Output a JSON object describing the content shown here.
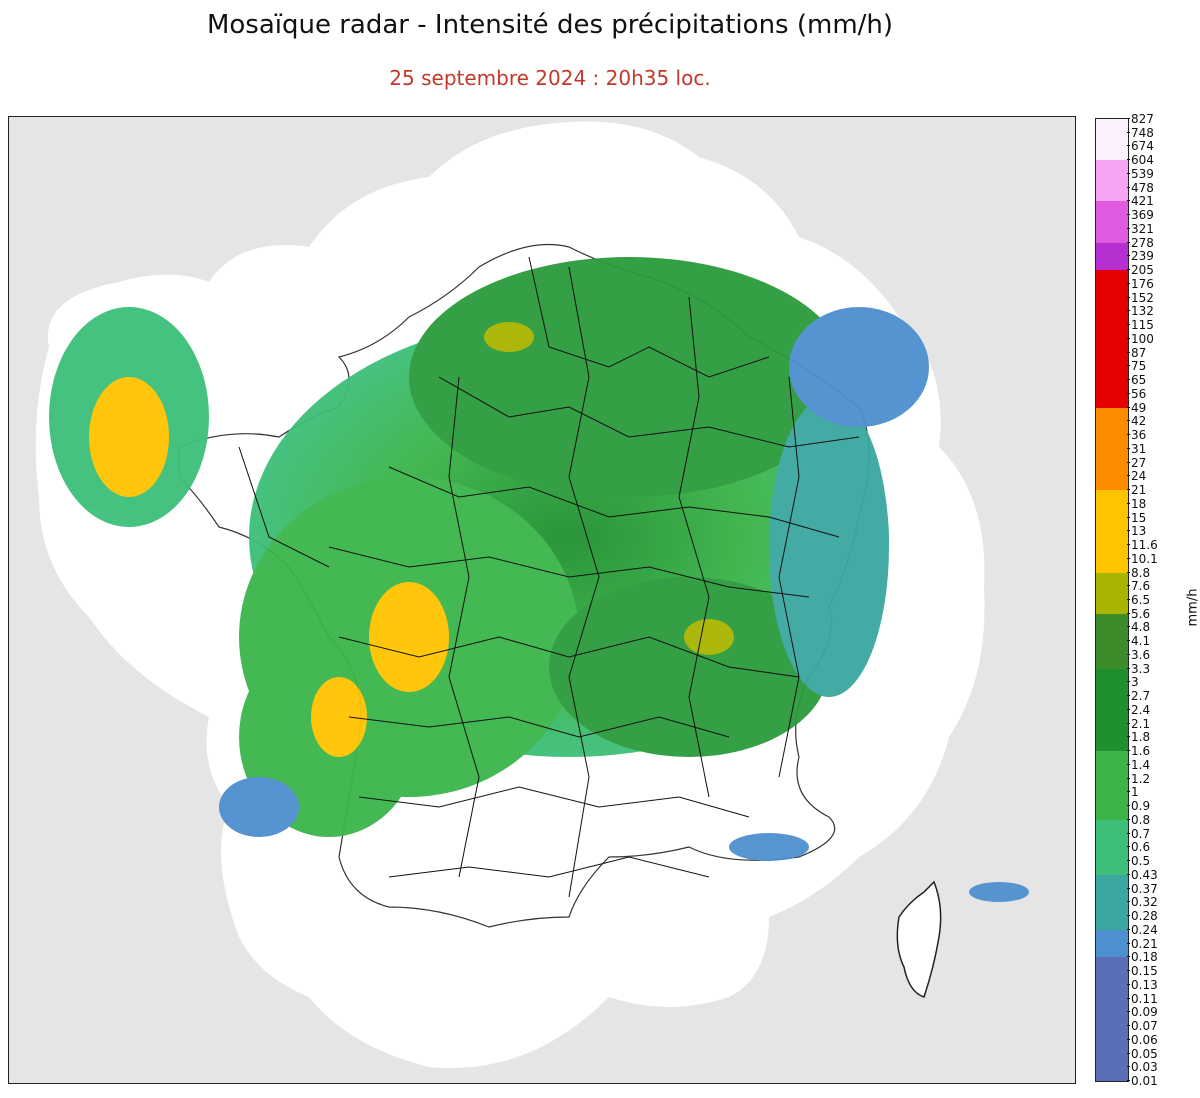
{
  "header": {
    "title": "Mosaïque radar - Intensité des précipitations (mm/h)",
    "subtitle": "25 septembre 2024 : 20h35 loc."
  },
  "map": {
    "background_color": "#e5e5e5",
    "coverage_color": "#ffffff",
    "border_color": "#222222"
  },
  "colorbar": {
    "unit": "mm/h",
    "ticks": [
      "827",
      "748",
      "674",
      "604",
      "539",
      "478",
      "421",
      "369",
      "321",
      "278",
      "239",
      "205",
      "176",
      "152",
      "132",
      "115",
      "100",
      "87",
      "75",
      "65",
      "56",
      "49",
      "42",
      "36",
      "31",
      "27",
      "24",
      "21",
      "18",
      "15",
      "13",
      "11.6",
      "10.1",
      "8.8",
      "7.6",
      "6.5",
      "5.6",
      "4.8",
      "4.1",
      "3.6",
      "3.3",
      "3",
      "2.7",
      "2.4",
      "2.1",
      "1.8",
      "1.6",
      "1.4",
      "1.2",
      "1",
      "0.9",
      "0.8",
      "0.7",
      "0.6",
      "0.5",
      "0.43",
      "0.37",
      "0.32",
      "0.28",
      "0.24",
      "0.21",
      "0.18",
      "0.15",
      "0.13",
      "0.11",
      "0.09",
      "0.07",
      "0.06",
      "0.05",
      "0.03",
      "0.01"
    ],
    "color_bands": [
      {
        "from": "827",
        "to": "604",
        "color": "#fbf0fb"
      },
      {
        "from": "604",
        "to": "421",
        "color": "#f4a6f4"
      },
      {
        "from": "421",
        "to": "278",
        "color": "#e05be0"
      },
      {
        "from": "278",
        "to": "205",
        "color": "#b52fd1"
      },
      {
        "from": "205",
        "to": "49",
        "color": "#e60000"
      },
      {
        "from": "49",
        "to": "21",
        "color": "#ff8c00"
      },
      {
        "from": "21",
        "to": "8.8",
        "color": "#ffc400"
      },
      {
        "from": "8.8",
        "to": "5.6",
        "color": "#a8b400"
      },
      {
        "from": "5.6",
        "to": "3.3",
        "color": "#3c8c2a"
      },
      {
        "from": "3.3",
        "to": "1.6",
        "color": "#1f8f2f"
      },
      {
        "from": "1.6",
        "to": "0.8",
        "color": "#3bb54a"
      },
      {
        "from": "0.8",
        "to": "0.43",
        "color": "#3dbf7a"
      },
      {
        "from": "0.43",
        "to": "0.24",
        "color": "#3aa6a0"
      },
      {
        "from": "0.24",
        "to": "0.18",
        "color": "#4e8fcf"
      },
      {
        "from": "0.18",
        "to": "0.01",
        "color": "#5b6fb8"
      }
    ]
  }
}
